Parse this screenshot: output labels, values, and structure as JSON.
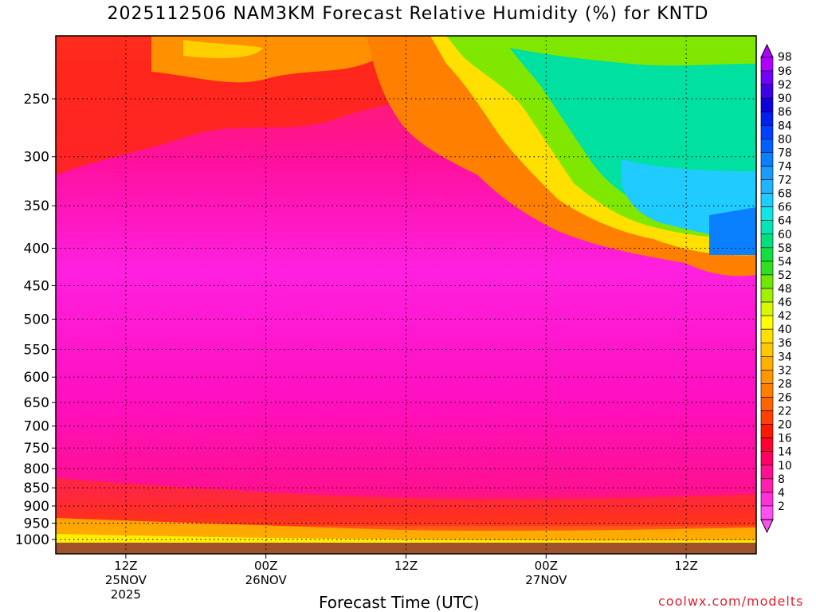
{
  "chart_data": {
    "type": "heatmap",
    "title": "2025112506 NAM3KM Forecast Relative Humidity (%) for KNTD",
    "xlabel": "Forecast Time (UTC)",
    "ylabel": "",
    "y_levels": [
      "250",
      "300",
      "350",
      "400",
      "450",
      "500",
      "550",
      "600",
      "650",
      "700",
      "750",
      "800",
      "850",
      "900",
      "950",
      "1000"
    ],
    "x_ticks": [
      {
        "time": "12Z",
        "date": "25NOV",
        "year": "2025",
        "hour": 6
      },
      {
        "time": "00Z",
        "date": "26NOV",
        "year": "",
        "hour": 18
      },
      {
        "time": "12Z",
        "date": "",
        "year": "",
        "hour": 30
      },
      {
        "time": "00Z",
        "date": "27NOV",
        "year": "",
        "hour": 42
      },
      {
        "time": "12Z",
        "date": "",
        "year": "",
        "hour": 54
      }
    ],
    "x_range_hours": [
      0,
      60
    ],
    "colorbar": {
      "labels": [
        "98",
        "96",
        "92",
        "90",
        "86",
        "84",
        "80",
        "78",
        "74",
        "72",
        "68",
        "66",
        "64",
        "60",
        "58",
        "54",
        "52",
        "48",
        "46",
        "42",
        "40",
        "36",
        "34",
        "32",
        "28",
        "26",
        "22",
        "20",
        "16",
        "14",
        "10",
        "8",
        "4",
        "2"
      ],
      "colors": [
        "#b000ff",
        "#7000ff",
        "#4000e8",
        "#1000e0",
        "#0020f0",
        "#0040ff",
        "#0060ff",
        "#0a80ff",
        "#1a9cff",
        "#20b4ff",
        "#20ccff",
        "#10e6e6",
        "#00e6b4",
        "#00e080",
        "#10e040",
        "#30e020",
        "#70e800",
        "#a0f000",
        "#d8f800",
        "#ffff00",
        "#ffe000",
        "#ffc800",
        "#ffb000",
        "#ff9800",
        "#ff8000",
        "#ff6400",
        "#ff4000",
        "#ff1800",
        "#ff0030",
        "#ff0060",
        "#ff1090",
        "#ff20b0",
        "#ff30d8",
        "#ff50f0"
      ]
    },
    "grid": true,
    "field_note": "Mostly 2-20% (pink/magenta) through column; dry 10-30% aloft early; moister 40-80% above 400 hPa after 00Z 27NOV; 30-50% near surface"
  },
  "credit": "coolwx.com/modelts"
}
